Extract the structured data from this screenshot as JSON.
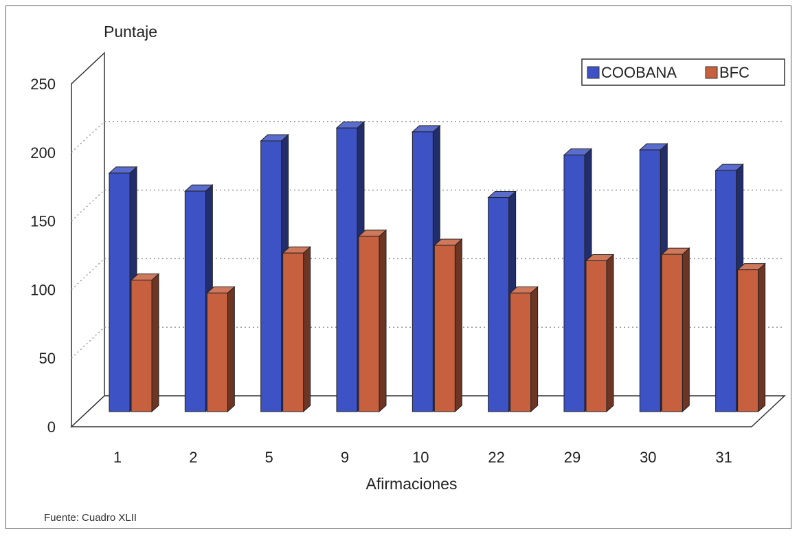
{
  "chart_data": {
    "type": "bar",
    "ylabel": "Puntaje",
    "xlabel": "Afirmaciones",
    "categories": [
      "1",
      "2",
      "5",
      "9",
      "10",
      "22",
      "29",
      "30",
      "31"
    ],
    "series": [
      {
        "name": "COOBANA",
        "color": "#3d52c4",
        "values": [
          185,
          171,
          210,
          220,
          217,
          166,
          199,
          203,
          187
        ]
      },
      {
        "name": "BFC",
        "color": "#c6603f",
        "values": [
          102,
          92,
          123,
          136,
          129,
          92,
          117,
          122,
          110
        ]
      }
    ],
    "ylim": [
      0,
      250
    ],
    "yticks": [
      0,
      50,
      100,
      150,
      200,
      250
    ],
    "grid": true,
    "legend": "top-right",
    "source": "Fuente:  Cuadro XLII"
  }
}
